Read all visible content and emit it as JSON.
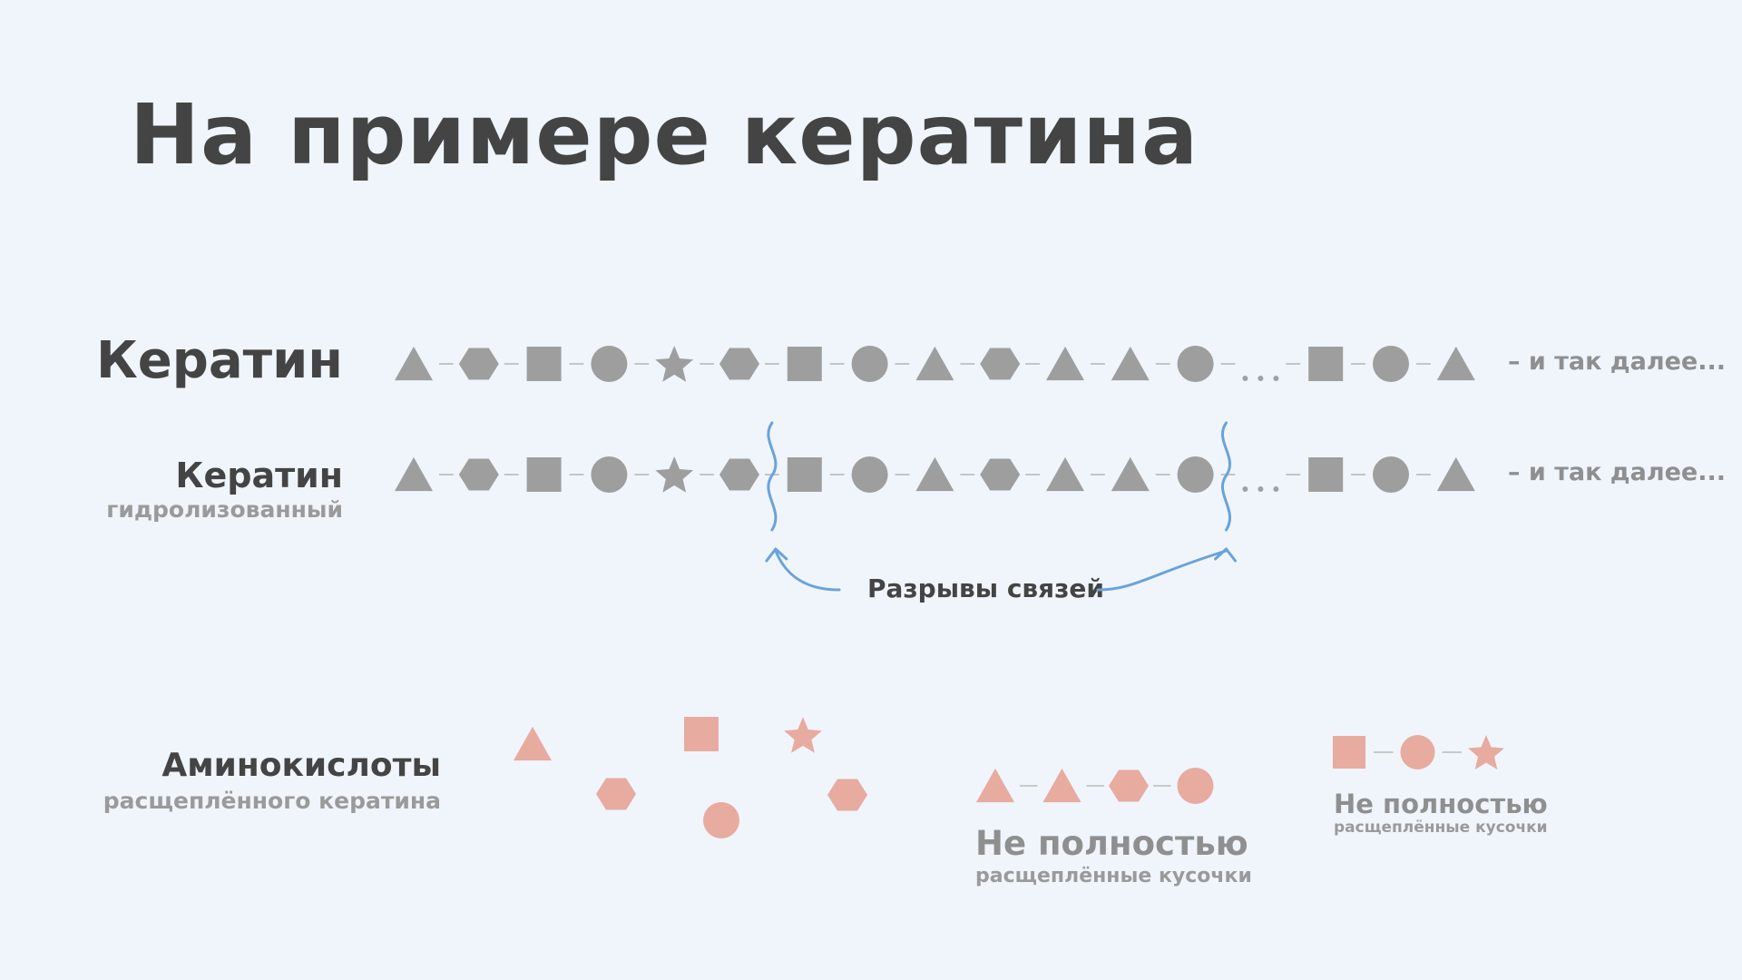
{
  "title": "На примере кератина",
  "rows": {
    "keratin_label": "Кератин",
    "hydrolyzed_label": "Кератин",
    "hydrolyzed_sub": "гидролизованный",
    "etc_label": "– и так далее...",
    "ellipsis": "..."
  },
  "chain": [
    "triangle",
    "hexagon",
    "square",
    "circle",
    "star",
    "hexagon",
    "square",
    "circle",
    "triangle",
    "hexagon",
    "triangle",
    "triangle",
    "circle",
    "ellipsis",
    "square",
    "circle",
    "triangle"
  ],
  "bond_breaks": {
    "label": "Разрывы связей",
    "after_positions": [
      6,
      13
    ]
  },
  "amino_acids": {
    "label": "Аминокислоты",
    "sub": "расщеплённого кератина",
    "shapes": [
      "triangle",
      "square",
      "star",
      "hexagon",
      "circle",
      "hexagon"
    ]
  },
  "fragments": [
    {
      "title": "Не полностью",
      "sub": "расщеплённые кусочки",
      "chain": [
        "triangle",
        "triangle",
        "hexagon",
        "circle"
      ]
    },
    {
      "title": "Не полностью",
      "sub": "расщеплённые кусочки",
      "chain": [
        "square",
        "circle",
        "star"
      ]
    }
  ],
  "colors": {
    "background": "#f0f5fc",
    "chain_shape": "#9e9e9e",
    "amino_shape": "#e7aba0",
    "break_line": "#6aa2dc",
    "title": "#444444"
  }
}
